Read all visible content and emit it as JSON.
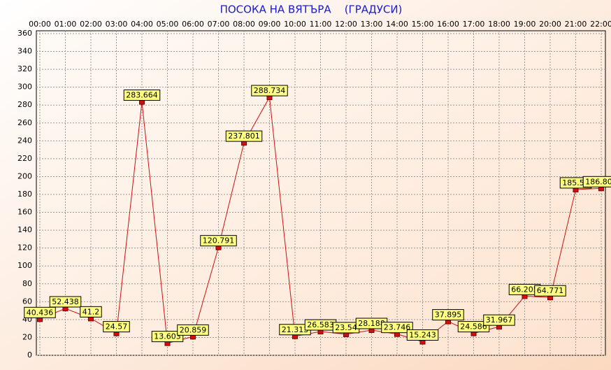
{
  "chart_data": {
    "type": "line",
    "title": "ПОСОКА НА ВЯТЪРА    (ГРАДУСИ)",
    "categories": [
      "00:00",
      "01:00",
      "02:00",
      "03:00",
      "04:00",
      "05:00",
      "06:00",
      "07:00",
      "08:00",
      "09:00",
      "10:00",
      "11:00",
      "12:00",
      "13:00",
      "14:00",
      "15:00",
      "16:00",
      "17:00",
      "18:00",
      "19:00",
      "20:00",
      "21:00",
      "22:00"
    ],
    "series": [
      {
        "name": "ПОСОКА НА ВЯТЪРА",
        "color": "#d01010",
        "values": [
          40.436,
          52.438,
          41.2,
          24.57,
          283.664,
          13.603,
          20.859,
          120.791,
          237.801,
          288.734,
          21.313,
          26.583,
          23.54,
          28.188,
          23.746,
          15.243,
          37.895,
          24.586,
          31.967,
          66.205,
          64.771,
          185.52,
          186.801
        ]
      }
    ],
    "ylim": [
      0,
      360
    ],
    "yticks": [
      0,
      20,
      40,
      60,
      80,
      100,
      120,
      140,
      160,
      180,
      200,
      220,
      240,
      260,
      280,
      300,
      320,
      340,
      360
    ],
    "grid": true
  }
}
